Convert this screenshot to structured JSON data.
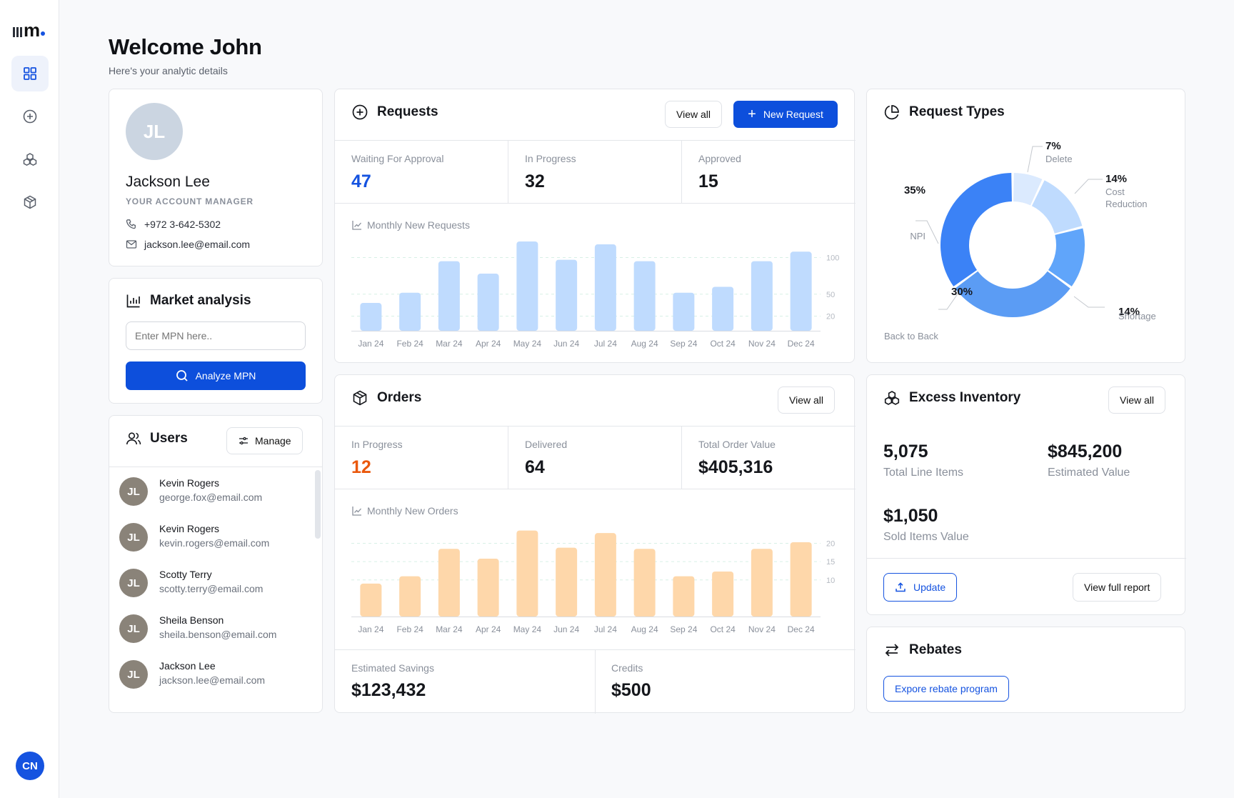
{
  "header": {
    "title": "Welcome John",
    "subtitle": "Here's your analytic details"
  },
  "sidebar": {
    "avatar_initials": "CN",
    "items": [
      "dashboard",
      "add",
      "integrations",
      "products"
    ]
  },
  "manager": {
    "initials": "JL",
    "name": "Jackson Lee",
    "role": "YOUR ACCOUNT MANAGER",
    "phone": "+972 3-642-5302",
    "email": "jackson.lee@email.com"
  },
  "market": {
    "title": "Market analysis",
    "placeholder": "Enter MPN here..",
    "button": "Analyze MPN"
  },
  "users": {
    "title": "Users",
    "manage_label": "Manage",
    "list": [
      {
        "initials": "JL",
        "name": "Kevin Rogers",
        "email": "george.fox@email.com"
      },
      {
        "initials": "JL",
        "name": "Kevin Rogers",
        "email": "kevin.rogers@email.com"
      },
      {
        "initials": "JL",
        "name": "Scotty Terry",
        "email": "scotty.terry@email.com"
      },
      {
        "initials": "JL",
        "name": "Sheila Benson",
        "email": "sheila.benson@email.com"
      },
      {
        "initials": "JL",
        "name": "Jackson Lee",
        "email": "jackson.lee@email.com"
      }
    ]
  },
  "requests": {
    "title": "Requests",
    "view_all": "View all",
    "new_request": "New Request",
    "stats": [
      {
        "label": "Waiting For Approval",
        "value": "47"
      },
      {
        "label": "In Progress",
        "value": "32"
      },
      {
        "label": "Approved",
        "value": "15"
      }
    ],
    "chart_title": "Monthly New Requests"
  },
  "orders": {
    "title": "Orders",
    "view_all": "View all",
    "stats": [
      {
        "label": "In Progress",
        "value": "12"
      },
      {
        "label": "Delivered",
        "value": "64"
      },
      {
        "label": "Total Order Value",
        "value": "$405,316"
      }
    ],
    "chart_title": "Monthly New Orders",
    "savings_label": "Estimated Savings",
    "savings_value": "$123,432",
    "credits_label": "Credits",
    "credits_value": "$500"
  },
  "request_types": {
    "title": "Request Types",
    "slices": [
      {
        "pct": "7%",
        "label": "Delete"
      },
      {
        "pct": "14%",
        "label": "Cost Reduction"
      },
      {
        "pct": "14%",
        "label": "Shortage"
      },
      {
        "pct": "30%",
        "label": "Back to Back"
      },
      {
        "pct": "35%",
        "label": "NPI"
      }
    ]
  },
  "excess": {
    "title": "Excess Inventory",
    "view_all": "View all",
    "line_items_value": "5,075",
    "line_items_label": "Total Line Items",
    "est_value": "$845,200",
    "est_label": "Estimated Value",
    "sold_value": "$1,050",
    "sold_label": "Sold Items Value",
    "update": "Update",
    "full_report": "View full report"
  },
  "rebates": {
    "title": "Rebates",
    "button": "Expore rebate program"
  },
  "colors": {
    "primary": "#1553e0",
    "requests_bar": "#bfdbfe",
    "orders_bar": "#fed7aa",
    "waiting": "#1553e0",
    "in_progress_orders": "#ea580c"
  },
  "chart_data": [
    {
      "type": "bar",
      "title": "Monthly New Requests",
      "categories": [
        "Jan 24",
        "Feb 24",
        "Mar 24",
        "Apr 24",
        "May 24",
        "Jun 24",
        "Jul 24",
        "Aug 24",
        "Sep 24",
        "Oct 24",
        "Nov 24",
        "Dec 24"
      ],
      "values": [
        38,
        52,
        95,
        78,
        122,
        97,
        118,
        95,
        52,
        60,
        95,
        108
      ],
      "yticks": [
        "100",
        "50",
        "20"
      ],
      "grid": true
    },
    {
      "type": "bar",
      "title": "Monthly New Orders",
      "categories": [
        "Jan 24",
        "Feb 24",
        "Mar 24",
        "Apr 24",
        "May 24",
        "Jun 24",
        "Jul 24",
        "Aug 24",
        "Sep 24",
        "Oct 24",
        "Nov 24",
        "Dec 24"
      ],
      "values": [
        9,
        11,
        18.5,
        15.8,
        23.5,
        18.8,
        22.8,
        18.5,
        11,
        12.3,
        18.5,
        20.3
      ],
      "yticks": [
        "20",
        "15",
        "10"
      ],
      "grid": true
    },
    {
      "type": "pie",
      "title": "Request Types",
      "categories": [
        "Delete",
        "Cost Reduction",
        "Shortage",
        "Back to Back",
        "NPI"
      ],
      "values": [
        7,
        14,
        14,
        30,
        35
      ]
    }
  ]
}
